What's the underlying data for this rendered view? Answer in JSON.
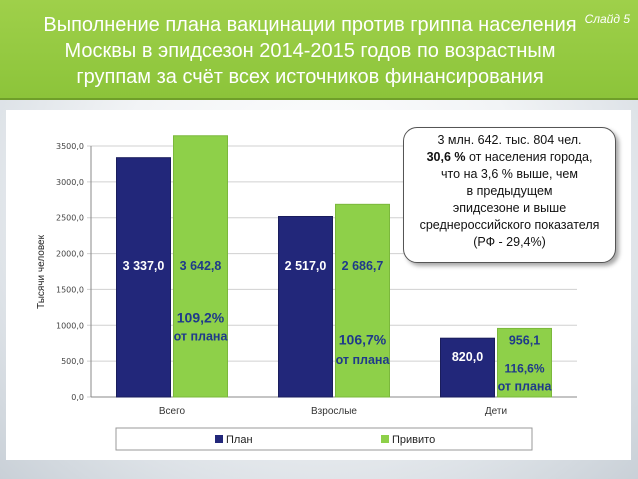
{
  "slide": {
    "number_label": "Слайд 5"
  },
  "title": {
    "line1": "Выполнение плана вакцинации против гриппа населения",
    "line2": "Москвы в эпидсезон 2014-2015 годов по возрастным",
    "line3": "группам за счёт всех источников финансирования"
  },
  "callout": {
    "line1": "3 млн. 642. тыс. 804 чел.",
    "line2_bold": "30,6 %",
    "line2_rest": " от населения города,",
    "line3": "что на 3,6 % выше, чем",
    "line4": "в предыдущем",
    "line5": "эпидсезоне и выше",
    "line6": "среднероссийского показателя",
    "line7": "(РФ - 29,4%)"
  },
  "colors": {
    "plan": "#22277a",
    "vaccinated": "#8ed049",
    "title_bar": "#8cc43a",
    "bar_label_vaccinated": "#1f3a8a",
    "bar_label_plan": "#ffffff"
  },
  "chart_data": {
    "type": "bar",
    "categories": [
      "Всего",
      "Взрослые",
      "Дети"
    ],
    "series": [
      {
        "name": "План",
        "values": [
          3337.0,
          2517.0,
          820.0
        ],
        "labels": [
          "3 337,0",
          "2 517,0",
          "820,0"
        ]
      },
      {
        "name": "Привито",
        "values": [
          3642.8,
          2686.7,
          956.1
        ],
        "labels": [
          "3 642,8",
          "2 686,7",
          "956,1"
        ]
      }
    ],
    "ylabel": "Тысячи человек",
    "ylim": [
      0,
      3500
    ],
    "yticks": [
      0,
      500,
      1000,
      1500,
      2000,
      2500,
      3000,
      3500
    ],
    "ytick_labels": [
      "0,0",
      "500,0",
      "1000,0",
      "1500,0",
      "2000,0",
      "2500,0",
      "3000,0",
      "3500,0"
    ],
    "legend_position": "bottom",
    "annotations": [
      {
        "category": "Всего",
        "percent": "109,2%",
        "text": "от плана"
      },
      {
        "category": "Взрослые",
        "percent": "106,7%",
        "text": "от плана"
      },
      {
        "category": "Дети",
        "percent": "116,6%",
        "text": "от плана"
      }
    ]
  }
}
